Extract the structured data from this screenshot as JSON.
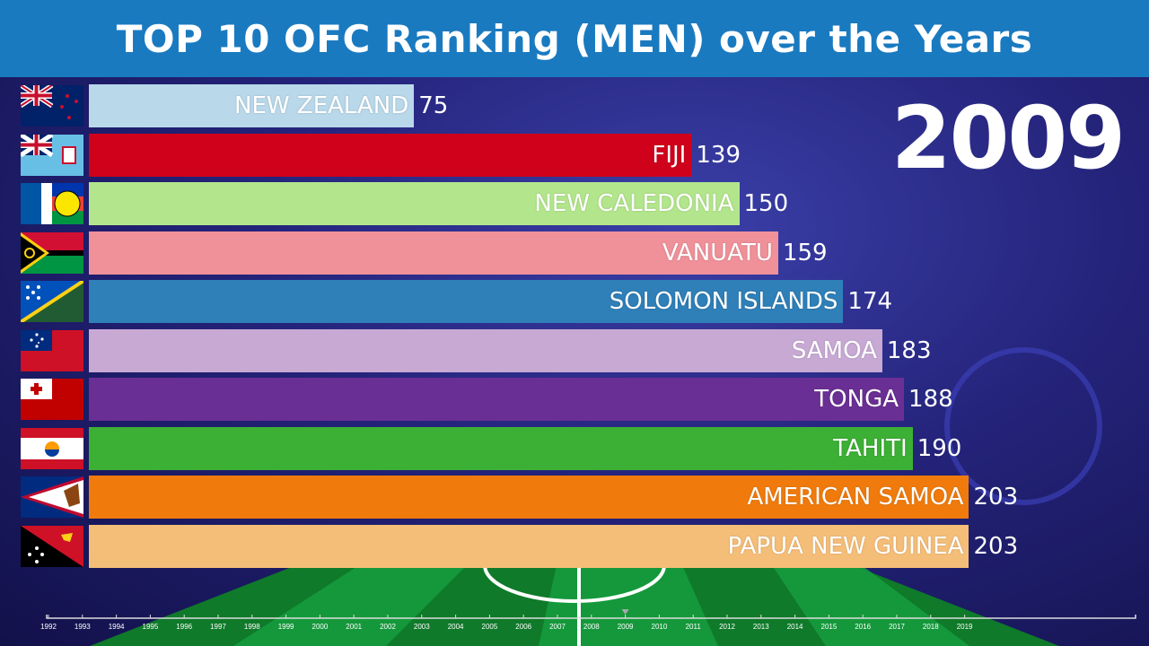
{
  "header": {
    "title": "TOP 10 OFC Ranking (MEN) over the Years"
  },
  "chart_data": {
    "type": "bar",
    "orientation": "horizontal",
    "title": "TOP 10 OFC Ranking (MEN) over the Years",
    "current_year": "2009",
    "categories": [
      "NEW ZEALAND",
      "FIJI",
      "NEW CALEDONIA",
      "VANUATU",
      "SOLOMON ISLANDS",
      "SAMOA",
      "TONGA",
      "TAHITI",
      "AMERICAN SAMOA",
      "PAPUA NEW GUINEA"
    ],
    "values": [
      75,
      139,
      150,
      159,
      174,
      183,
      188,
      190,
      203,
      203
    ],
    "colors": [
      "#b9d8ea",
      "#d0021b",
      "#b3e68c",
      "#f0919a",
      "#2f7fb8",
      "#c8a9d4",
      "#6a2f94",
      "#3cb034",
      "#f07b0c",
      "#f5be78"
    ],
    "flags": [
      "new-zealand-flag",
      "fiji-flag",
      "new-caledonia-flag",
      "vanuatu-flag",
      "solomon-islands-flag",
      "samoa-flag",
      "tonga-flag",
      "tahiti-flag",
      "american-samoa-flag",
      "papua-new-guinea-flag"
    ],
    "timeline": {
      "years": [
        "1992",
        "1993",
        "1994",
        "1995",
        "1996",
        "1997",
        "1998",
        "1999",
        "2000",
        "2001",
        "2002",
        "2003",
        "2004",
        "2005",
        "2006",
        "2007",
        "2008",
        "2009",
        "2010",
        "2011",
        "2012",
        "2013",
        "2014",
        "2015",
        "2016",
        "2017",
        "2018",
        "2019"
      ],
      "current": "2009"
    },
    "grid": false
  }
}
